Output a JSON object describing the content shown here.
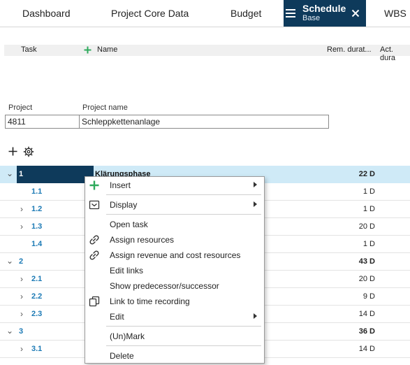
{
  "tabs": [
    {
      "label": "Dashboard"
    },
    {
      "label": "Project Core Data"
    },
    {
      "label": "Budget"
    },
    {
      "label": "Schedule",
      "sub": "Base"
    },
    {
      "label": "WBS"
    }
  ],
  "columns": {
    "task": "Task",
    "name": "Name",
    "rem": "Rem. durat...",
    "act": "Act. dura"
  },
  "project": {
    "label_project": "Project",
    "label_name": "Project name",
    "id": "4811",
    "name": "Schleppkettenanlage"
  },
  "rows": [
    {
      "num": "1",
      "name": "Klärungsphase",
      "dur": "22 D"
    },
    {
      "num": "1.1",
      "dur": "1 D"
    },
    {
      "num": "1.2",
      "dur": "1 D"
    },
    {
      "num": "1.3",
      "dur": "20 D"
    },
    {
      "num": "1.4",
      "dur": "1 D"
    },
    {
      "num": "2",
      "dur": "43 D"
    },
    {
      "num": "2.1",
      "dur": "20 D"
    },
    {
      "num": "2.2",
      "dur": "9 D"
    },
    {
      "num": "2.3",
      "dur": "14 D"
    },
    {
      "num": "3",
      "dur": "36 D"
    },
    {
      "num": "3.1",
      "dur": "14 D"
    }
  ],
  "menu": {
    "insert": "Insert",
    "display": "Display",
    "open_task": "Open task",
    "assign_resources": "Assign resources",
    "assign_revenue": "Assign revenue and cost resources",
    "edit_links": "Edit links",
    "show_pred": "Show predecessor/successor",
    "link_time": "Link to time recording",
    "edit": "Edit",
    "unmark": "(Un)Mark",
    "delete": "Delete"
  },
  "colors": {
    "accent": "#0e3a5b",
    "link": "#1c7ab5",
    "add": "#2eaa5c",
    "selected_row": "#cfeaf7"
  }
}
